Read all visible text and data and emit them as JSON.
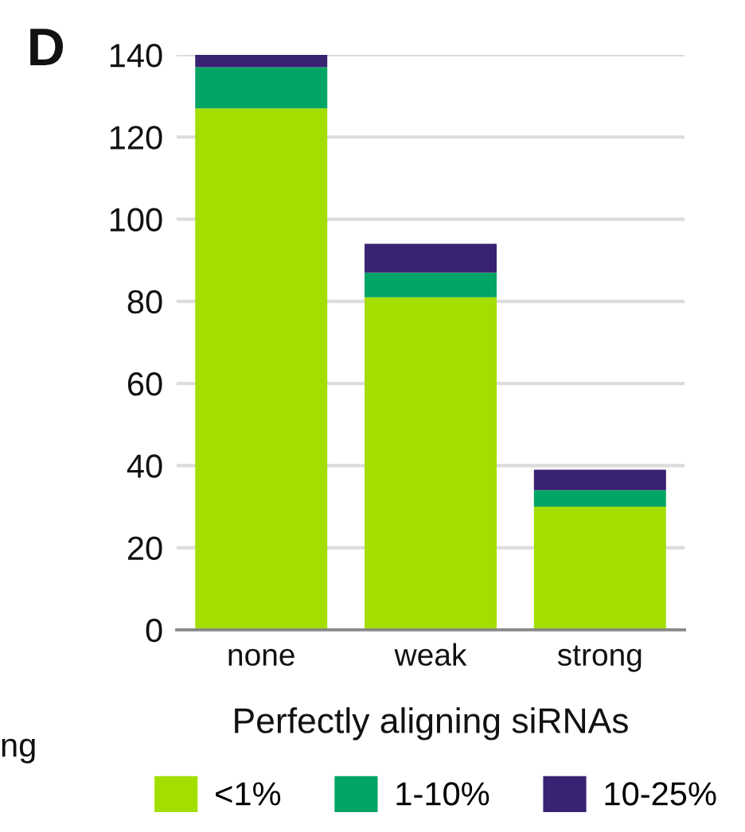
{
  "chart_data": {
    "type": "bar",
    "stacked": true,
    "categories": [
      "none",
      "weak",
      "strong"
    ],
    "series": [
      {
        "name": "<1%",
        "color": "#a3de00",
        "values": [
          127,
          81,
          30
        ]
      },
      {
        "name": "1-10%",
        "color": "#02a565",
        "values": [
          10,
          6,
          4
        ]
      },
      {
        "name": "10-25%",
        "color": "#3a2272",
        "values": [
          3,
          7,
          5
        ]
      }
    ],
    "xlabel": "Perfectly aligning siRNAs",
    "ylim": [
      0,
      140
    ],
    "yticks": [
      0,
      20,
      40,
      60,
      80,
      100,
      120,
      140
    ],
    "grid": "y",
    "legend": "bottom",
    "annotations": [
      "D",
      "ng"
    ]
  }
}
